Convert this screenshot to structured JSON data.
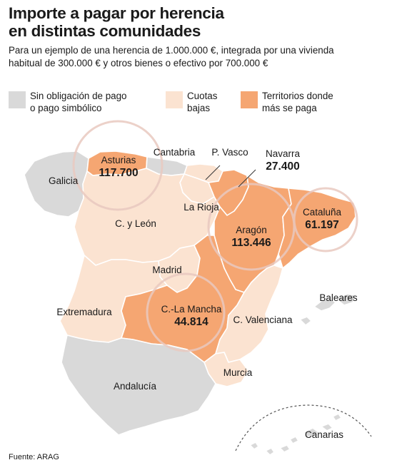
{
  "title_line1": "Importe a pagar por herencia",
  "title_line2": "en distintas comunidades",
  "subtitle_line1": "Para un ejemplo de una herencia de 1.000.000 €, integrada por una vivienda",
  "subtitle_line2": "habitual de 300.000 € y otros bienes o efectivo por 700.000 €",
  "legend": [
    {
      "line1": "Sin obligación de pago",
      "line2": "o pago simbólico",
      "color": "#d9d9d9"
    },
    {
      "line1": "Cuotas",
      "line2": "bajas",
      "color": "#fbe3d1"
    },
    {
      "line1": "Territorios donde",
      "line2": "más se paga",
      "color": "#f5a672"
    }
  ],
  "colors": {
    "none": "#d9d9d9",
    "low": "#fbe3d1",
    "high": "#f5a672",
    "border": "#ffffff",
    "circle": "#e9c9c0"
  },
  "regions": {
    "galicia": {
      "name": "Galicia",
      "category": "none"
    },
    "asturias": {
      "name": "Asturias",
      "value": "117.700",
      "category": "high"
    },
    "cantabria": {
      "name": "Cantabria",
      "category": "none"
    },
    "pvasco": {
      "name": "P. Vasco",
      "category": "low"
    },
    "navarra": {
      "name": "Navarra",
      "value": "27.400",
      "category": "high"
    },
    "larioja": {
      "name": "La Rioja",
      "category": "low"
    },
    "cyleon": {
      "name": "C. y León",
      "category": "low"
    },
    "aragon": {
      "name": "Aragón",
      "value": "113.446",
      "category": "high"
    },
    "cataluna": {
      "name": "Cataluña",
      "value": "61.197",
      "category": "high"
    },
    "madrid": {
      "name": "Madrid",
      "category": "low"
    },
    "extremadura": {
      "name": "Extremadura",
      "category": "low"
    },
    "clamancha": {
      "name": "C.-La Mancha",
      "value": "44.814",
      "category": "high"
    },
    "cvalenciana": {
      "name": "C. Valenciana",
      "category": "low"
    },
    "baleares": {
      "name": "Baleares",
      "category": "none"
    },
    "murcia": {
      "name": "Murcia",
      "category": "low"
    },
    "andalucia": {
      "name": "Andalucía",
      "category": "none"
    },
    "canarias": {
      "name": "Canarias",
      "category": "none"
    }
  },
  "source": "Fuente: ARAG"
}
